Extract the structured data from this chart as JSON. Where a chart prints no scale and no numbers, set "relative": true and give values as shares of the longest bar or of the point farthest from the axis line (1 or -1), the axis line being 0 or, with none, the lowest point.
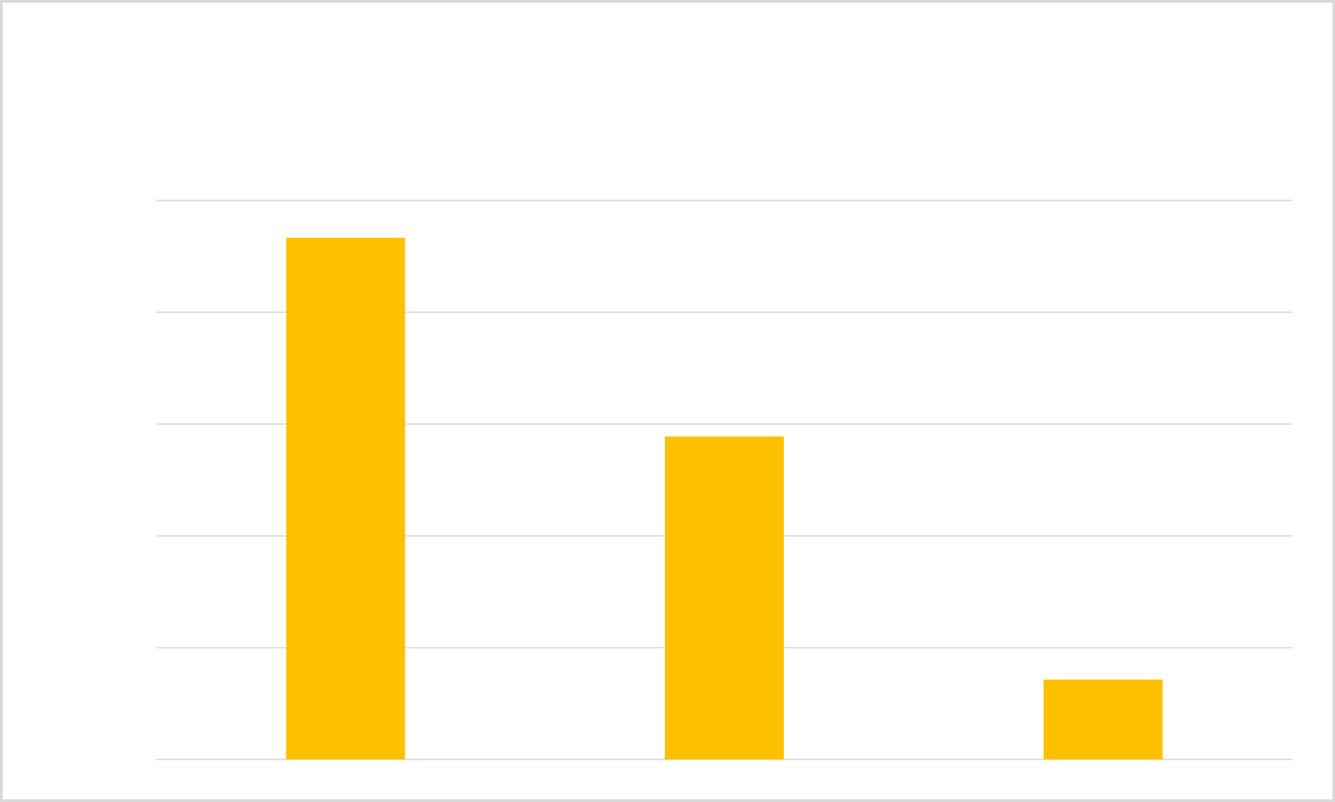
{
  "chart_data": {
    "type": "bar",
    "categories": [
      null,
      null,
      null
    ],
    "values": [
      1,
      0.619,
      0.153
    ],
    "color": "#ffc000",
    "relative": true,
    "grid": "y"
  }
}
